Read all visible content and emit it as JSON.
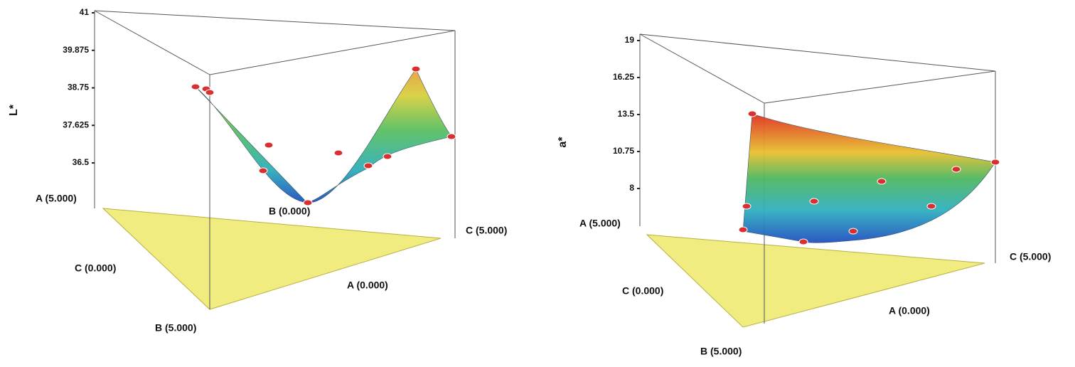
{
  "chart_data": [
    {
      "type": "surface3d",
      "zlabel": "L*",
      "zlim": [
        35.2,
        41
      ],
      "zticks": [
        36.5,
        37.625,
        38.75,
        39.875,
        41
      ],
      "vertex_labels": [
        "A (5.000)",
        "C (0.000)",
        "B (5.000)",
        "A (0.000)",
        "B (0.000)",
        "C (5.000)"
      ]
    },
    {
      "type": "surface3d",
      "zlabel": "a*",
      "zlim": [
        5.2,
        19
      ],
      "zticks": [
        8,
        10.75,
        13.5,
        16.25,
        19
      ],
      "vertex_labels": [
        "A (5.000)",
        "C (0.000)",
        "B (5.000)",
        "A (0.000)",
        "C (5.000)"
      ]
    }
  ]
}
